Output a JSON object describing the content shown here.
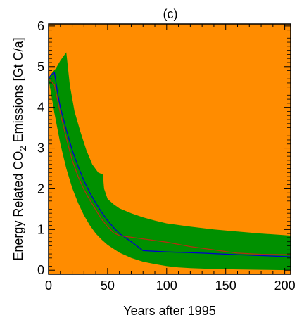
{
  "chart_data": {
    "type": "area",
    "title": "(c)",
    "xlabel": "Years after 1995",
    "ylabel_parts": [
      "Energy Related CO",
      "2",
      " Emissions [Gt C/a]"
    ],
    "xlim": [
      0,
      205
    ],
    "ylim": [
      -0.1,
      6.05
    ],
    "xticks": [
      0,
      50,
      100,
      150,
      200
    ],
    "yticks": [
      0,
      1,
      2,
      3,
      4,
      5,
      6
    ],
    "x_tick_labels": [
      "0",
      "50",
      "100",
      "150",
      "200"
    ],
    "y_tick_labels": [
      "0",
      "1",
      "2",
      "3",
      "4",
      "5",
      "6"
    ],
    "grid": false,
    "colors": {
      "background": "#ff8c00",
      "band": "#009000",
      "line_blue": "#0000cc",
      "line_red": "#b03010",
      "axes": "#000000"
    },
    "band_upper": {
      "x": [
        0,
        3,
        6,
        10,
        15,
        18,
        22,
        27,
        32,
        37,
        42,
        46,
        47,
        50,
        55,
        60,
        70,
        80,
        90,
        100,
        120,
        140,
        160,
        180,
        205
      ],
      "y": [
        4.7,
        4.85,
        4.95,
        5.15,
        5.35,
        4.55,
        3.9,
        3.4,
        2.95,
        2.6,
        2.4,
        2.35,
        2.0,
        1.75,
        1.62,
        1.52,
        1.4,
        1.3,
        1.22,
        1.15,
        1.07,
        1.0,
        0.95,
        0.9,
        0.85
      ]
    },
    "band_lower": {
      "x": [
        0,
        5,
        10,
        15,
        20,
        25,
        30,
        35,
        40,
        45,
        50,
        60,
        70,
        80,
        90,
        100,
        110,
        120,
        130,
        140,
        160,
        180,
        205
      ],
      "y": [
        4.7,
        3.85,
        3.1,
        2.5,
        2.02,
        1.65,
        1.35,
        1.1,
        0.9,
        0.75,
        0.62,
        0.43,
        0.3,
        0.21,
        0.15,
        0.1,
        0.07,
        0.05,
        0.04,
        0.03,
        0.02,
        0.01,
        0.0
      ]
    },
    "series": [
      {
        "color": "#0000cc",
        "x": [
          0,
          2,
          5,
          8,
          10,
          15,
          20,
          25,
          30,
          35,
          40,
          45,
          50,
          55,
          60,
          70,
          80,
          100,
          130,
          160,
          205
        ],
        "y": [
          4.7,
          4.8,
          4.85,
          4.3,
          4.0,
          3.45,
          2.95,
          2.55,
          2.2,
          1.9,
          1.65,
          1.42,
          1.22,
          1.05,
          0.9,
          0.7,
          0.48,
          0.45,
          0.42,
          0.38,
          0.33
        ]
      },
      {
        "color": "#b03010",
        "x": [
          0,
          5,
          10,
          15,
          20,
          25,
          30,
          35,
          40,
          45,
          50,
          55,
          60,
          80,
          100,
          120,
          140,
          160,
          180,
          205
        ],
        "y": [
          4.7,
          4.55,
          3.85,
          3.25,
          2.7,
          2.3,
          1.98,
          1.72,
          1.48,
          1.25,
          1.07,
          0.92,
          0.85,
          0.77,
          0.69,
          0.58,
          0.5,
          0.42,
          0.39,
          0.38
        ]
      }
    ]
  }
}
